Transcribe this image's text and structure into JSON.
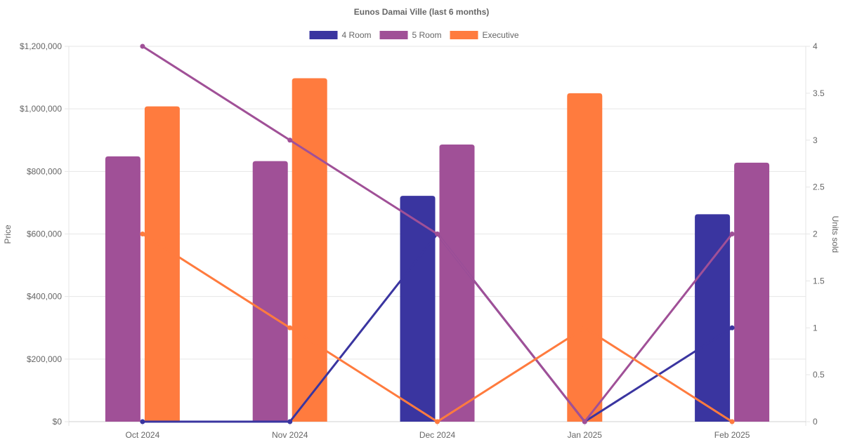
{
  "chart_data": {
    "type": "bar",
    "title": "Eunos Damai Ville (last 6 months)",
    "categories": [
      "Oct 2024",
      "Nov 2024",
      "Dec 2024",
      "Jan 2025",
      "Feb 2025"
    ],
    "ylabel": "Price",
    "y2label": "Units sold",
    "ylim": [
      0,
      1200000
    ],
    "y2lim": [
      0,
      4
    ],
    "yticks": [
      "$0",
      "$200,000",
      "$400,000",
      "$600,000",
      "$800,000",
      "$1,000,000",
      "$1,200,000"
    ],
    "y2ticks": [
      "0",
      "0.5",
      "1",
      "1.5",
      "2",
      "2.5",
      "3",
      "3.5",
      "4"
    ],
    "legend_position": "top-center",
    "grid": true,
    "legend": [
      {
        "name": "4 Room",
        "color": "#3a35a0"
      },
      {
        "name": "5 Room",
        "color": "#a05097"
      },
      {
        "name": "Executive",
        "color": "#ff7b3e"
      }
    ],
    "price_series": [
      {
        "name": "4 Room",
        "color": "#3a35a0",
        "values": [
          null,
          null,
          722000,
          null,
          663000
        ]
      },
      {
        "name": "5 Room",
        "color": "#a05097",
        "values": [
          848000,
          833000,
          886000,
          null,
          828000
        ]
      },
      {
        "name": "Executive",
        "color": "#ff7b3e",
        "values": [
          1008000,
          1098000,
          null,
          1050000,
          null
        ]
      }
    ],
    "units_series": [
      {
        "name": "4 Room",
        "color": "#3a35a0",
        "values": [
          0,
          0,
          2,
          0,
          1
        ]
      },
      {
        "name": "5 Room",
        "color": "#a05097",
        "values": [
          4,
          3,
          2,
          0,
          2
        ]
      },
      {
        "name": "Executive",
        "color": "#ff7b3e",
        "values": [
          2,
          1,
          0,
          1,
          0
        ]
      }
    ]
  }
}
